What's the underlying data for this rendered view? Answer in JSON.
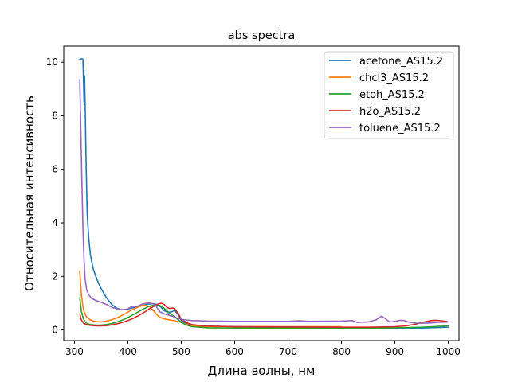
{
  "chart_data": {
    "type": "line",
    "title": "abs spectra",
    "xlabel": "Длина волны, нм",
    "ylabel": "Относительная интенсивность",
    "xlim": [
      280,
      1020
    ],
    "ylim": [
      -0.4,
      10.6
    ],
    "xticks": [
      300,
      400,
      500,
      600,
      700,
      800,
      900,
      1000
    ],
    "yticks": [
      0,
      2,
      4,
      6,
      8,
      10
    ],
    "grid": false,
    "legend_position": "top-right",
    "series": [
      {
        "name": "acetone_AS15.2",
        "color": "#1f77b4",
        "points": [
          [
            310,
            10.12
          ],
          [
            314,
            10.12
          ],
          [
            316,
            10.12
          ],
          [
            318,
            8.5
          ],
          [
            319,
            9.5
          ],
          [
            320,
            8.5
          ],
          [
            322,
            6.0
          ],
          [
            324,
            4.3
          ],
          [
            327,
            3.4
          ],
          [
            330,
            2.8
          ],
          [
            335,
            2.3
          ],
          [
            340,
            2.0
          ],
          [
            345,
            1.75
          ],
          [
            350,
            1.55
          ],
          [
            360,
            1.2
          ],
          [
            370,
            0.95
          ],
          [
            380,
            0.8
          ],
          [
            390,
            0.75
          ],
          [
            400,
            0.78
          ],
          [
            410,
            0.83
          ],
          [
            420,
            0.88
          ],
          [
            430,
            0.93
          ],
          [
            440,
            0.97
          ],
          [
            448,
            0.98
          ],
          [
            455,
            0.95
          ],
          [
            462,
            0.85
          ],
          [
            468,
            0.72
          ],
          [
            475,
            0.65
          ],
          [
            482,
            0.68
          ],
          [
            488,
            0.72
          ],
          [
            495,
            0.55
          ],
          [
            500,
            0.35
          ],
          [
            510,
            0.22
          ],
          [
            520,
            0.17
          ],
          [
            540,
            0.14
          ],
          [
            600,
            0.12
          ],
          [
            700,
            0.1
          ],
          [
            800,
            0.09
          ],
          [
            850,
            0.07
          ],
          [
            900,
            0.07
          ],
          [
            950,
            0.07
          ],
          [
            1000,
            0.1
          ]
        ]
      },
      {
        "name": "chcl3_AS15.2",
        "color": "#ff7f0e",
        "points": [
          [
            310,
            2.2
          ],
          [
            313,
            1.3
          ],
          [
            317,
            0.75
          ],
          [
            322,
            0.5
          ],
          [
            330,
            0.37
          ],
          [
            340,
            0.31
          ],
          [
            350,
            0.3
          ],
          [
            360,
            0.33
          ],
          [
            370,
            0.38
          ],
          [
            380,
            0.45
          ],
          [
            390,
            0.55
          ],
          [
            400,
            0.66
          ],
          [
            410,
            0.77
          ],
          [
            420,
            0.86
          ],
          [
            430,
            0.93
          ],
          [
            440,
            0.88
          ],
          [
            448,
            0.72
          ],
          [
            455,
            0.55
          ],
          [
            460,
            0.47
          ],
          [
            470,
            0.4
          ],
          [
            480,
            0.37
          ],
          [
            490,
            0.33
          ],
          [
            500,
            0.28
          ],
          [
            510,
            0.2
          ],
          [
            520,
            0.15
          ],
          [
            550,
            0.12
          ],
          [
            600,
            0.12
          ],
          [
            700,
            0.12
          ],
          [
            800,
            0.12
          ]
        ]
      },
      {
        "name": "etoh_AS15.2",
        "color": "#2ca02c",
        "points": [
          [
            310,
            1.2
          ],
          [
            313,
            0.7
          ],
          [
            317,
            0.4
          ],
          [
            322,
            0.25
          ],
          [
            330,
            0.2
          ],
          [
            340,
            0.18
          ],
          [
            350,
            0.18
          ],
          [
            360,
            0.2
          ],
          [
            370,
            0.24
          ],
          [
            380,
            0.3
          ],
          [
            390,
            0.37
          ],
          [
            400,
            0.46
          ],
          [
            410,
            0.57
          ],
          [
            420,
            0.68
          ],
          [
            430,
            0.79
          ],
          [
            440,
            0.88
          ],
          [
            450,
            0.93
          ],
          [
            458,
            0.93
          ],
          [
            465,
            0.86
          ],
          [
            472,
            0.74
          ],
          [
            480,
            0.6
          ],
          [
            490,
            0.45
          ],
          [
            500,
            0.28
          ],
          [
            510,
            0.18
          ],
          [
            520,
            0.12
          ],
          [
            550,
            0.08
          ],
          [
            600,
            0.07
          ],
          [
            700,
            0.07
          ],
          [
            800,
            0.07
          ],
          [
            850,
            0.07
          ],
          [
            900,
            0.08
          ],
          [
            950,
            0.1
          ],
          [
            970,
            0.12
          ],
          [
            990,
            0.14
          ],
          [
            1000,
            0.16
          ]
        ]
      },
      {
        "name": "h2o_AS15.2",
        "color": "#d62728",
        "points": [
          [
            310,
            0.6
          ],
          [
            313,
            0.38
          ],
          [
            317,
            0.25
          ],
          [
            322,
            0.2
          ],
          [
            330,
            0.17
          ],
          [
            340,
            0.15
          ],
          [
            350,
            0.15
          ],
          [
            360,
            0.16
          ],
          [
            370,
            0.19
          ],
          [
            380,
            0.23
          ],
          [
            390,
            0.28
          ],
          [
            400,
            0.35
          ],
          [
            410,
            0.43
          ],
          [
            420,
            0.53
          ],
          [
            430,
            0.65
          ],
          [
            440,
            0.78
          ],
          [
            450,
            0.9
          ],
          [
            458,
            0.98
          ],
          [
            463,
            1.0
          ],
          [
            468,
            0.95
          ],
          [
            473,
            0.85
          ],
          [
            478,
            0.8
          ],
          [
            484,
            0.82
          ],
          [
            488,
            0.78
          ],
          [
            495,
            0.6
          ],
          [
            500,
            0.4
          ],
          [
            510,
            0.27
          ],
          [
            520,
            0.2
          ],
          [
            540,
            0.15
          ],
          [
            600,
            0.12
          ],
          [
            700,
            0.11
          ],
          [
            800,
            0.1
          ],
          [
            850,
            0.1
          ],
          [
            900,
            0.12
          ],
          [
            920,
            0.15
          ],
          [
            940,
            0.22
          ],
          [
            955,
            0.3
          ],
          [
            965,
            0.34
          ],
          [
            975,
            0.36
          ],
          [
            985,
            0.35
          ],
          [
            995,
            0.32
          ],
          [
            1000,
            0.3
          ]
        ]
      },
      {
        "name": "toluene_AS15.2",
        "color": "#9467bd",
        "points": [
          [
            310,
            9.35
          ],
          [
            312,
            7.5
          ],
          [
            314,
            5.5
          ],
          [
            316,
            3.8
          ],
          [
            318,
            2.6
          ],
          [
            320,
            1.9
          ],
          [
            323,
            1.5
          ],
          [
            327,
            1.3
          ],
          [
            332,
            1.18
          ],
          [
            340,
            1.1
          ],
          [
            350,
            1.03
          ],
          [
            360,
            0.95
          ],
          [
            370,
            0.85
          ],
          [
            380,
            0.78
          ],
          [
            390,
            0.75
          ],
          [
            400,
            0.78
          ],
          [
            405,
            0.85
          ],
          [
            410,
            0.88
          ],
          [
            415,
            0.86
          ],
          [
            420,
            0.9
          ],
          [
            428,
            0.97
          ],
          [
            435,
            1.0
          ],
          [
            442,
            1.0
          ],
          [
            448,
            0.97
          ],
          [
            452,
            0.92
          ],
          [
            455,
            0.82
          ],
          [
            460,
            0.68
          ],
          [
            468,
            0.6
          ],
          [
            475,
            0.56
          ],
          [
            485,
            0.5
          ],
          [
            495,
            0.42
          ],
          [
            505,
            0.38
          ],
          [
            520,
            0.35
          ],
          [
            550,
            0.33
          ],
          [
            600,
            0.32
          ],
          [
            700,
            0.32
          ],
          [
            720,
            0.34
          ],
          [
            740,
            0.32
          ],
          [
            800,
            0.33
          ],
          [
            820,
            0.35
          ],
          [
            830,
            0.28
          ],
          [
            850,
            0.3
          ],
          [
            865,
            0.38
          ],
          [
            875,
            0.52
          ],
          [
            882,
            0.42
          ],
          [
            890,
            0.3
          ],
          [
            900,
            0.32
          ],
          [
            910,
            0.36
          ],
          [
            918,
            0.35
          ],
          [
            925,
            0.3
          ],
          [
            940,
            0.25
          ],
          [
            960,
            0.25
          ],
          [
            980,
            0.28
          ],
          [
            1000,
            0.3
          ]
        ]
      }
    ]
  }
}
